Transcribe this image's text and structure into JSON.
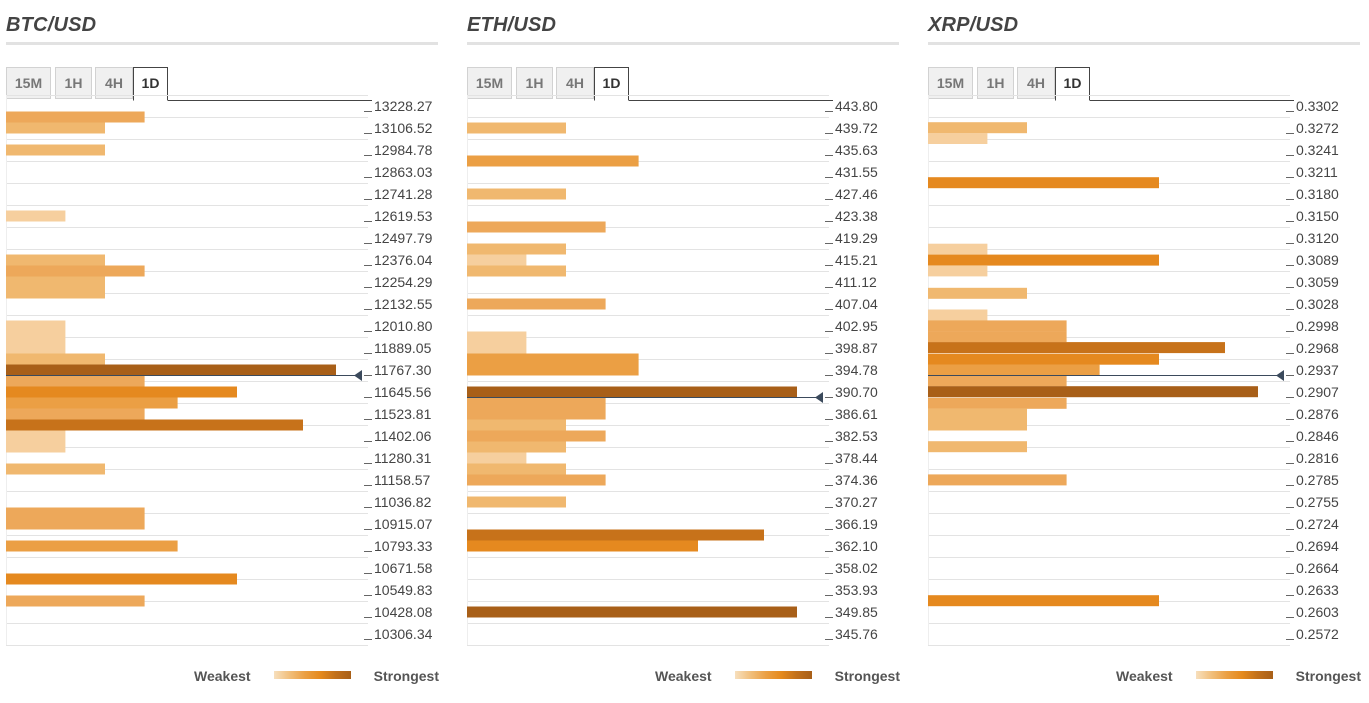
{
  "legend": {
    "weakest": "Weakest",
    "strongest": "Strongest"
  },
  "panels": [
    {
      "title": "BTC/USD",
      "tabs": [
        "15M",
        "1H",
        "4H",
        "1D"
      ],
      "active_tab": "1D",
      "price_labels": [
        "13228.27",
        "13106.52",
        "12984.78",
        "12863.03",
        "12741.28",
        "12619.53",
        "12497.79",
        "12376.04",
        "12254.29",
        "12132.55",
        "12010.80",
        "11889.05",
        "11767.30",
        "11645.56",
        "11523.81",
        "11402.06",
        "11280.31",
        "11158.57",
        "11036.82",
        "10915.07",
        "10793.33",
        "10671.58",
        "10549.83",
        "10428.08",
        "10306.34"
      ],
      "current_price_index": 12
    },
    {
      "title": "ETH/USD",
      "tabs": [
        "15M",
        "1H",
        "4H",
        "1D"
      ],
      "active_tab": "1D",
      "price_labels": [
        "443.80",
        "439.72",
        "435.63",
        "431.55",
        "427.46",
        "423.38",
        "419.29",
        "415.21",
        "411.12",
        "407.04",
        "402.95",
        "398.87",
        "394.78",
        "390.70",
        "386.61",
        "382.53",
        "378.44",
        "374.36",
        "370.27",
        "366.19",
        "362.10",
        "358.02",
        "353.93",
        "349.85",
        "345.76"
      ],
      "current_price_index": 13
    },
    {
      "title": "XRP/USD",
      "tabs": [
        "15M",
        "1H",
        "4H",
        "1D"
      ],
      "active_tab": "1D",
      "price_labels": [
        "0.3302",
        "0.3272",
        "0.3241",
        "0.3211",
        "0.3180",
        "0.3150",
        "0.3120",
        "0.3089",
        "0.3059",
        "0.3028",
        "0.2998",
        "0.2968",
        "0.2937",
        "0.2907",
        "0.2876",
        "0.2846",
        "0.2816",
        "0.2785",
        "0.2755",
        "0.2724",
        "0.2694",
        "0.2664",
        "0.2633",
        "0.2603",
        "0.2572"
      ],
      "current_price_index": 12
    }
  ],
  "chart_data": [
    {
      "type": "bar",
      "title": "BTC/USD",
      "orientation": "horizontal",
      "y_unit": "USD",
      "y_range": [
        10306.34,
        13228.27
      ],
      "bars": [
        {
          "level": 13167.4,
          "strength": 3
        },
        {
          "level": 13106.5,
          "strength": 2
        },
        {
          "level": 12984.8,
          "strength": 2
        },
        {
          "level": 12619.5,
          "strength": 1
        },
        {
          "level": 12376.0,
          "strength": 2
        },
        {
          "level": 12315.2,
          "strength": 3
        },
        {
          "level": 12254.3,
          "strength": 2
        },
        {
          "level": 12193.4,
          "strength": 2
        },
        {
          "level": 12010.8,
          "strength": 1
        },
        {
          "level": 11949.9,
          "strength": 1
        },
        {
          "level": 11889.1,
          "strength": 1
        },
        {
          "level": 11828.2,
          "strength": 2
        },
        {
          "level": 11767.3,
          "strength": 7
        },
        {
          "level": 11706.4,
          "strength": 3
        },
        {
          "level": 11645.6,
          "strength": 5
        },
        {
          "level": 11584.7,
          "strength": 4
        },
        {
          "level": 11523.8,
          "strength": 3
        },
        {
          "level": 11462.9,
          "strength": 6
        },
        {
          "level": 11402.1,
          "strength": 1
        },
        {
          "level": 11341.2,
          "strength": 1
        },
        {
          "level": 11219.4,
          "strength": 2
        },
        {
          "level": 10975.9,
          "strength": 3
        },
        {
          "level": 10915.1,
          "strength": 3
        },
        {
          "level": 10793.3,
          "strength": 4
        },
        {
          "level": 10610.7,
          "strength": 5
        },
        {
          "level": 10489.0,
          "strength": 3
        }
      ]
    },
    {
      "type": "bar",
      "title": "ETH/USD",
      "orientation": "horizontal",
      "y_unit": "USD",
      "y_range": [
        345.76,
        443.8
      ],
      "bars": [
        {
          "level": 439.72,
          "strength": 2
        },
        {
          "level": 433.59,
          "strength": 4
        },
        {
          "level": 427.46,
          "strength": 2
        },
        {
          "level": 421.34,
          "strength": 3
        },
        {
          "level": 417.25,
          "strength": 2
        },
        {
          "level": 415.21,
          "strength": 1
        },
        {
          "level": 413.17,
          "strength": 2
        },
        {
          "level": 407.04,
          "strength": 3
        },
        {
          "level": 400.91,
          "strength": 1
        },
        {
          "level": 398.87,
          "strength": 1
        },
        {
          "level": 396.83,
          "strength": 4
        },
        {
          "level": 394.78,
          "strength": 4
        },
        {
          "level": 390.7,
          "strength": 7
        },
        {
          "level": 388.66,
          "strength": 3
        },
        {
          "level": 386.61,
          "strength": 3
        },
        {
          "level": 384.57,
          "strength": 2
        },
        {
          "level": 382.53,
          "strength": 3
        },
        {
          "level": 380.49,
          "strength": 2
        },
        {
          "level": 378.44,
          "strength": 1
        },
        {
          "level": 376.4,
          "strength": 2
        },
        {
          "level": 374.36,
          "strength": 3
        },
        {
          "level": 370.27,
          "strength": 2
        },
        {
          "level": 364.14,
          "strength": 6
        },
        {
          "level": 362.1,
          "strength": 5
        },
        {
          "level": 349.85,
          "strength": 7
        }
      ]
    },
    {
      "type": "bar",
      "title": "XRP/USD",
      "orientation": "horizontal",
      "y_unit": "USD",
      "y_range": [
        0.2572,
        0.3302
      ],
      "bars": [
        {
          "level": 0.3272,
          "strength": 2
        },
        {
          "level": 0.3257,
          "strength": 1
        },
        {
          "level": 0.3196,
          "strength": 5
        },
        {
          "level": 0.3104,
          "strength": 1
        },
        {
          "level": 0.3089,
          "strength": 5
        },
        {
          "level": 0.3074,
          "strength": 1
        },
        {
          "level": 0.3043,
          "strength": 2
        },
        {
          "level": 0.3013,
          "strength": 1
        },
        {
          "level": 0.2998,
          "strength": 3
        },
        {
          "level": 0.2983,
          "strength": 3
        },
        {
          "level": 0.2968,
          "strength": 6
        },
        {
          "level": 0.2952,
          "strength": 5
        },
        {
          "level": 0.2937,
          "strength": 4
        },
        {
          "level": 0.2922,
          "strength": 3
        },
        {
          "level": 0.2907,
          "strength": 7
        },
        {
          "level": 0.2891,
          "strength": 3
        },
        {
          "level": 0.2876,
          "strength": 2
        },
        {
          "level": 0.2861,
          "strength": 2
        },
        {
          "level": 0.2831,
          "strength": 2
        },
        {
          "level": 0.2785,
          "strength": 3
        },
        {
          "level": 0.2618,
          "strength": 5
        }
      ]
    }
  ],
  "strength_scale": {
    "1": {
      "width_frac": 0.18,
      "color": "#f6cf9e"
    },
    "2": {
      "width_frac": 0.3,
      "color": "#f0b86f"
    },
    "3": {
      "width_frac": 0.42,
      "color": "#eda85a"
    },
    "4": {
      "width_frac": 0.52,
      "color": "#eb9f44"
    },
    "5": {
      "width_frac": 0.7,
      "color": "#e5891f"
    },
    "6": {
      "width_frac": 0.9,
      "color": "#c7721a"
    },
    "7": {
      "width_frac": 1.0,
      "color": "#a85f18"
    }
  },
  "colors": {
    "marker_line": "#3b4a5c",
    "grid": "#e3e3e3",
    "tick": "#666666"
  }
}
